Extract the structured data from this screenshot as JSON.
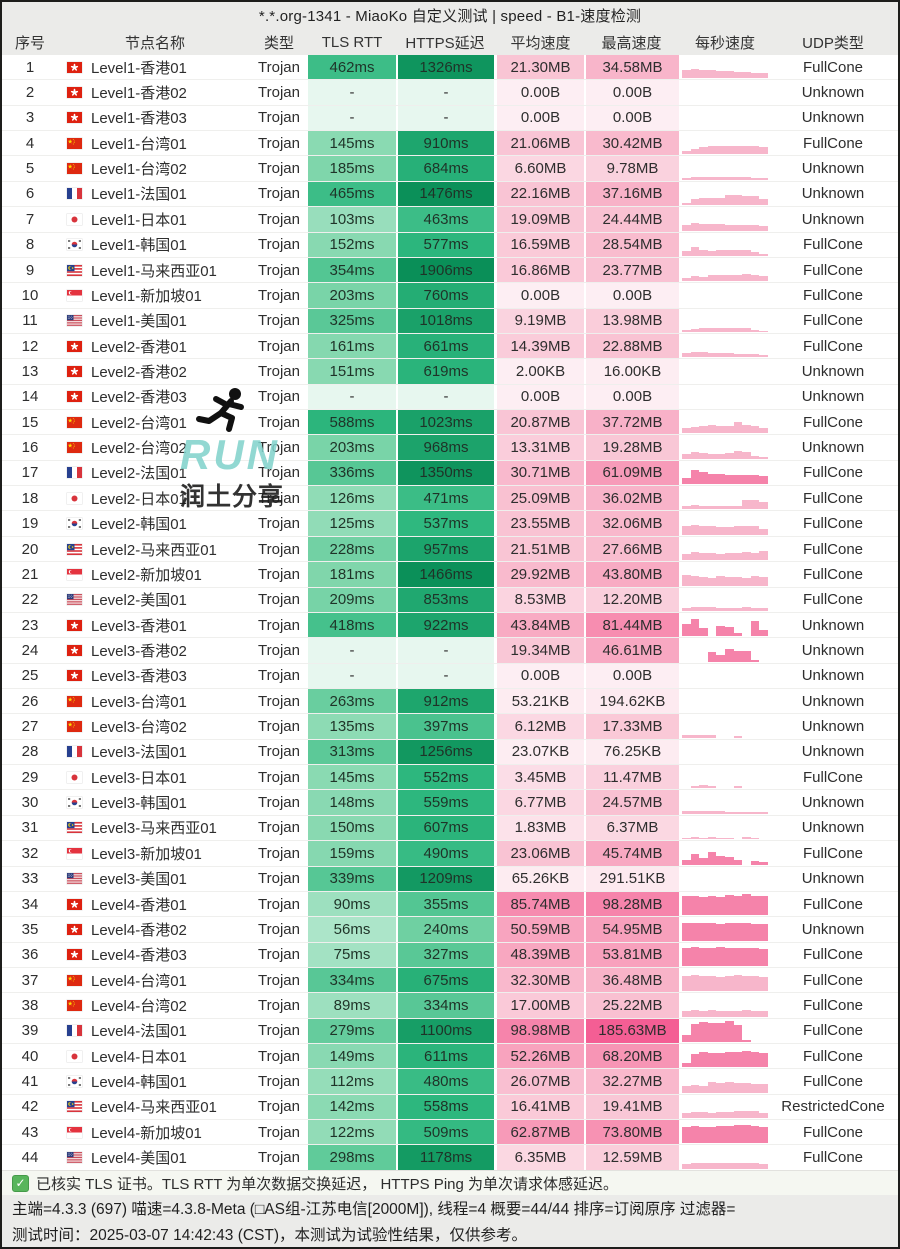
{
  "title": "*.*.org-1341 - MiaoKo 自定义测试 | speed - B1-速度检测",
  "columns": [
    "序号",
    "节点名称",
    "类型",
    "TLS RTT",
    "HTTPS延迟",
    "平均速度",
    "最高速度",
    "每秒速度",
    "UDP类型"
  ],
  "colors": {
    "green_stops": [
      "#e3f7ed",
      "#7fd6ab",
      "#2eb87f",
      "#0a8f58"
    ],
    "pink_stops": [
      "#fdeef3",
      "#f9c3d3",
      "#f795b5",
      "#f45c93"
    ],
    "bar_pink": "#f7b6cb",
    "bar_pink_strong": "#f583aa",
    "watermark_teal": "#7fd2cb",
    "check_green": "#58b55c"
  },
  "rows": [
    {
      "i": "1",
      "flag": "hk",
      "name": "Level1-香港01",
      "type": "Trojan",
      "tls": "462ms",
      "https": "1326ms",
      "avg": "21.30MB",
      "max": "34.58MB",
      "udp": "FullCone",
      "bars": [
        0.4,
        0.45,
        0.42,
        0.38,
        0.36,
        0.34,
        0.32,
        0.3,
        0.27,
        0.24
      ]
    },
    {
      "i": "2",
      "flag": "hk",
      "name": "Level1-香港02",
      "type": "Trojan",
      "tls": "-",
      "https": "-",
      "avg": "0.00B",
      "max": "0.00B",
      "udp": "Unknown",
      "bars": []
    },
    {
      "i": "3",
      "flag": "hk",
      "name": "Level1-香港03",
      "type": "Trojan",
      "tls": "-",
      "https": "-",
      "avg": "0.00B",
      "max": "0.00B",
      "udp": "Unknown",
      "bars": []
    },
    {
      "i": "4",
      "flag": "tw",
      "name": "Level1-台湾01",
      "type": "Trojan",
      "tls": "145ms",
      "https": "910ms",
      "avg": "21.06MB",
      "max": "30.42MB",
      "udp": "FullCone",
      "bars": [
        0.16,
        0.24,
        0.34,
        0.4,
        0.42,
        0.4,
        0.38,
        0.4,
        0.39,
        0.36
      ]
    },
    {
      "i": "5",
      "flag": "tw",
      "name": "Level1-台湾02",
      "type": "Trojan",
      "tls": "185ms",
      "https": "684ms",
      "avg": "6.60MB",
      "max": "9.78MB",
      "udp": "Unknown",
      "bars": [
        0.1,
        0.12,
        0.13,
        0.14,
        0.15,
        0.14,
        0.13,
        0.12,
        0.11,
        0.1
      ]
    },
    {
      "i": "6",
      "flag": "fr",
      "name": "Level1-法国01",
      "type": "Trojan",
      "tls": "465ms",
      "https": "1476ms",
      "avg": "22.16MB",
      "max": "37.16MB",
      "udp": "Unknown",
      "bars": [
        0.12,
        0.3,
        0.36,
        0.34,
        0.32,
        0.5,
        0.48,
        0.45,
        0.42,
        0.3
      ]
    },
    {
      "i": "7",
      "flag": "jp",
      "name": "Level1-日本01",
      "type": "Trojan",
      "tls": "103ms",
      "https": "463ms",
      "avg": "19.09MB",
      "max": "24.44MB",
      "udp": "Unknown",
      "bars": [
        0.28,
        0.36,
        0.33,
        0.31,
        0.29,
        0.28,
        0.27,
        0.26,
        0.24,
        0.22
      ]
    },
    {
      "i": "8",
      "flag": "kr",
      "name": "Level1-韩国01",
      "type": "Trojan",
      "tls": "152ms",
      "https": "577ms",
      "avg": "16.59MB",
      "max": "28.54MB",
      "udp": "FullCone",
      "bars": [
        0.24,
        0.4,
        0.3,
        0.22,
        0.27,
        0.29,
        0.28,
        0.27,
        0.2,
        0.1
      ]
    },
    {
      "i": "9",
      "flag": "my",
      "name": "Level1-马来西亚01",
      "type": "Trojan",
      "tls": "354ms",
      "https": "1906ms",
      "avg": "16.86MB",
      "max": "23.77MB",
      "udp": "FullCone",
      "bars": [
        0.16,
        0.25,
        0.22,
        0.28,
        0.3,
        0.28,
        0.31,
        0.33,
        0.31,
        0.26
      ]
    },
    {
      "i": "10",
      "flag": "sg",
      "name": "Level1-新加坡01",
      "type": "Trojan",
      "tls": "203ms",
      "https": "760ms",
      "avg": "0.00B",
      "max": "0.00B",
      "udp": "FullCone",
      "bars": []
    },
    {
      "i": "11",
      "flag": "us",
      "name": "Level1-美国01",
      "type": "Trojan",
      "tls": "325ms",
      "https": "1018ms",
      "avg": "9.19MB",
      "max": "13.98MB",
      "udp": "FullCone",
      "bars": [
        0.08,
        0.12,
        0.18,
        0.21,
        0.2,
        0.19,
        0.21,
        0.19,
        0.1,
        0.05
      ]
    },
    {
      "i": "12",
      "flag": "hk",
      "name": "Level2-香港01",
      "type": "Trojan",
      "tls": "161ms",
      "https": "661ms",
      "avg": "14.39MB",
      "max": "22.88MB",
      "udp": "FullCone",
      "bars": [
        0.22,
        0.26,
        0.24,
        0.22,
        0.2,
        0.19,
        0.18,
        0.17,
        0.15,
        0.12
      ]
    },
    {
      "i": "13",
      "flag": "hk",
      "name": "Level2-香港02",
      "type": "Trojan",
      "tls": "151ms",
      "https": "619ms",
      "avg": "2.00KB",
      "max": "16.00KB",
      "udp": "Unknown",
      "bars": []
    },
    {
      "i": "14",
      "flag": "hk",
      "name": "Level2-香港03",
      "type": "Trojan",
      "tls": "-",
      "https": "-",
      "avg": "0.00B",
      "max": "0.00B",
      "udp": "Unknown",
      "bars": []
    },
    {
      "i": "15",
      "flag": "tw",
      "name": "Level2-台湾01",
      "type": "Trojan",
      "tls": "588ms",
      "https": "1023ms",
      "avg": "20.87MB",
      "max": "37.72MB",
      "udp": "FullCone",
      "bars": [
        0.24,
        0.3,
        0.35,
        0.38,
        0.36,
        0.34,
        0.55,
        0.42,
        0.36,
        0.28
      ]
    },
    {
      "i": "16",
      "flag": "tw",
      "name": "Level2-台湾02",
      "type": "Trojan",
      "tls": "203ms",
      "https": "968ms",
      "avg": "13.31MB",
      "max": "19.28MB",
      "udp": "Unknown",
      "bars": [
        0.22,
        0.3,
        0.27,
        0.25,
        0.23,
        0.27,
        0.38,
        0.31,
        0.15,
        0.08
      ]
    },
    {
      "i": "17",
      "flag": "fr",
      "name": "Level2-法国01",
      "type": "Trojan",
      "tls": "336ms",
      "https": "1350ms",
      "avg": "30.71MB",
      "max": "61.09MB",
      "udp": "FullCone",
      "bars": [
        0.3,
        0.65,
        0.57,
        0.5,
        0.46,
        0.44,
        0.42,
        0.44,
        0.42,
        0.4
      ]
    },
    {
      "i": "18",
      "flag": "jp",
      "name": "Level2-日本01",
      "type": "Trojan",
      "tls": "126ms",
      "https": "471ms",
      "avg": "25.09MB",
      "max": "36.02MB",
      "udp": "FullCone",
      "bars": [
        0.17,
        0.19,
        0.18,
        0.17,
        0.16,
        0.17,
        0.18,
        0.45,
        0.43,
        0.38
      ]
    },
    {
      "i": "19",
      "flag": "kr",
      "name": "Level2-韩国01",
      "type": "Trojan",
      "tls": "125ms",
      "https": "537ms",
      "avg": "23.55MB",
      "max": "32.06MB",
      "udp": "FullCone",
      "bars": [
        0.42,
        0.46,
        0.44,
        0.42,
        0.38,
        0.35,
        0.4,
        0.42,
        0.4,
        0.3
      ]
    },
    {
      "i": "20",
      "flag": "my",
      "name": "Level2-马来西亚01",
      "type": "Trojan",
      "tls": "228ms",
      "https": "957ms",
      "avg": "21.51MB",
      "max": "27.66MB",
      "udp": "FullCone",
      "bars": [
        0.3,
        0.37,
        0.35,
        0.33,
        0.31,
        0.33,
        0.35,
        0.37,
        0.35,
        0.46
      ]
    },
    {
      "i": "21",
      "flag": "sg",
      "name": "Level2-新加坡01",
      "type": "Trojan",
      "tls": "181ms",
      "https": "1466ms",
      "avg": "29.92MB",
      "max": "43.80MB",
      "udp": "FullCone",
      "bars": [
        0.52,
        0.46,
        0.42,
        0.38,
        0.44,
        0.4,
        0.42,
        0.38,
        0.44,
        0.42
      ]
    },
    {
      "i": "22",
      "flag": "us",
      "name": "Level2-美国01",
      "type": "Trojan",
      "tls": "209ms",
      "https": "853ms",
      "avg": "8.53MB",
      "max": "12.20MB",
      "udp": "FullCone",
      "bars": [
        0.15,
        0.19,
        0.18,
        0.17,
        0.16,
        0.15,
        0.16,
        0.17,
        0.16,
        0.15
      ]
    },
    {
      "i": "23",
      "flag": "hk",
      "name": "Level3-香港01",
      "type": "Trojan",
      "tls": "418ms",
      "https": "922ms",
      "avg": "43.84MB",
      "max": "81.44MB",
      "udp": "Unknown",
      "bars": [
        0.58,
        0.8,
        0.38,
        0,
        0.48,
        0.42,
        0.15,
        0,
        0.75,
        0.32
      ]
    },
    {
      "i": "24",
      "flag": "hk",
      "name": "Level3-香港02",
      "type": "Trojan",
      "tls": "-",
      "https": "-",
      "avg": "19.34MB",
      "max": "46.61MB",
      "udp": "Unknown",
      "bars": [
        0,
        0,
        0,
        0.48,
        0.32,
        0.58,
        0.52,
        0.5,
        0.08,
        0
      ]
    },
    {
      "i": "25",
      "flag": "hk",
      "name": "Level3-香港03",
      "type": "Trojan",
      "tls": "-",
      "https": "-",
      "avg": "0.00B",
      "max": "0.00B",
      "udp": "Unknown",
      "bars": []
    },
    {
      "i": "26",
      "flag": "tw",
      "name": "Level3-台湾01",
      "type": "Trojan",
      "tls": "263ms",
      "https": "912ms",
      "avg": "53.21KB",
      "max": "194.62KB",
      "udp": "Unknown",
      "bars": []
    },
    {
      "i": "27",
      "flag": "tw",
      "name": "Level3-台湾02",
      "type": "Trojan",
      "tls": "135ms",
      "https": "397ms",
      "avg": "6.12MB",
      "max": "17.33MB",
      "udp": "Unknown",
      "bars": [
        0.11,
        0.13,
        0.13,
        0.11,
        0,
        0,
        0.09,
        0,
        0,
        0
      ]
    },
    {
      "i": "28",
      "flag": "fr",
      "name": "Level3-法国01",
      "type": "Trojan",
      "tls": "313ms",
      "https": "1256ms",
      "avg": "23.07KB",
      "max": "76.25KB",
      "udp": "Unknown",
      "bars": []
    },
    {
      "i": "29",
      "flag": "jp",
      "name": "Level3-日本01",
      "type": "Trojan",
      "tls": "145ms",
      "https": "552ms",
      "avg": "3.45MB",
      "max": "11.47MB",
      "udp": "FullCone",
      "bars": [
        0,
        0.13,
        0.15,
        0.13,
        0,
        0,
        0.11,
        0,
        0,
        0
      ]
    },
    {
      "i": "30",
      "flag": "kr",
      "name": "Level3-韩国01",
      "type": "Trojan",
      "tls": "148ms",
      "https": "559ms",
      "avg": "6.77MB",
      "max": "24.57MB",
      "udp": "Unknown",
      "bars": [
        0.11,
        0.15,
        0.13,
        0.12,
        0.11,
        0.1,
        0.1,
        0.09,
        0.08,
        0.07
      ]
    },
    {
      "i": "31",
      "flag": "my",
      "name": "Level3-马来西亚01",
      "type": "Trojan",
      "tls": "150ms",
      "https": "607ms",
      "avg": "1.83MB",
      "max": "6.37MB",
      "udp": "Unknown",
      "bars": [
        0.06,
        0.08,
        0.07,
        0.09,
        0.07,
        0.05,
        0,
        0.08,
        0.05,
        0
      ]
    },
    {
      "i": "32",
      "flag": "sg",
      "name": "Level3-新加坡01",
      "type": "Trojan",
      "tls": "159ms",
      "https": "490ms",
      "avg": "23.06MB",
      "max": "45.74MB",
      "udp": "FullCone",
      "bars": [
        0.22,
        0.48,
        0.32,
        0.58,
        0.42,
        0.36,
        0.22,
        0,
        0.16,
        0.1
      ]
    },
    {
      "i": "33",
      "flag": "us",
      "name": "Level3-美国01",
      "type": "Trojan",
      "tls": "339ms",
      "https": "1209ms",
      "avg": "65.26KB",
      "max": "291.51KB",
      "udp": "Unknown",
      "bars": []
    },
    {
      "i": "34",
      "flag": "hk",
      "name": "Level4-香港01",
      "type": "Trojan",
      "tls": "90ms",
      "https": "355ms",
      "avg": "85.74MB",
      "max": "98.28MB",
      "udp": "FullCone",
      "bars": [
        0.92,
        0.9,
        0.88,
        0.91,
        0.89,
        0.96,
        0.91,
        1,
        0.93,
        0.9
      ]
    },
    {
      "i": "35",
      "flag": "hk",
      "name": "Level4-香港02",
      "type": "Trojan",
      "tls": "56ms",
      "https": "240ms",
      "avg": "50.59MB",
      "max": "54.95MB",
      "udp": "Unknown",
      "bars": [
        0.82,
        0.86,
        0.84,
        0.82,
        0.8,
        0.82,
        0.84,
        0.82,
        0.8,
        0.78
      ]
    },
    {
      "i": "36",
      "flag": "hk",
      "name": "Level4-香港03",
      "type": "Trojan",
      "tls": "75ms",
      "https": "327ms",
      "avg": "48.39MB",
      "max": "53.81MB",
      "udp": "FullCone",
      "bars": [
        0.86,
        0.89,
        0.87,
        0.85,
        0.91,
        0.87,
        0.85,
        0.87,
        0.85,
        0.83
      ]
    },
    {
      "i": "37",
      "flag": "tw",
      "name": "Level4-台湾01",
      "type": "Trojan",
      "tls": "334ms",
      "https": "675ms",
      "avg": "32.30MB",
      "max": "36.48MB",
      "udp": "FullCone",
      "bars": [
        0.72,
        0.76,
        0.74,
        0.72,
        0.7,
        0.72,
        0.8,
        0.74,
        0.72,
        0.7
      ]
    },
    {
      "i": "38",
      "flag": "tw",
      "name": "Level4-台湾02",
      "type": "Trojan",
      "tls": "89ms",
      "https": "334ms",
      "avg": "17.00MB",
      "max": "25.22MB",
      "udp": "FullCone",
      "bars": [
        0.26,
        0.31,
        0.29,
        0.31,
        0.29,
        0.28,
        0.29,
        0.31,
        0.29,
        0.27
      ]
    },
    {
      "i": "39",
      "flag": "fr",
      "name": "Level4-法国01",
      "type": "Trojan",
      "tls": "279ms",
      "https": "1100ms",
      "avg": "98.98MB",
      "max": "185.63MB",
      "udp": "FullCone",
      "bars": [
        0.35,
        0.85,
        0.96,
        0.89,
        0.93,
        1,
        0.82,
        0.12,
        0,
        0
      ]
    },
    {
      "i": "40",
      "flag": "jp",
      "name": "Level4-日本01",
      "type": "Trojan",
      "tls": "149ms",
      "https": "611ms",
      "avg": "52.26MB",
      "max": "68.20MB",
      "udp": "FullCone",
      "bars": [
        0.22,
        0.62,
        0.72,
        0.7,
        0.68,
        0.72,
        0.74,
        0.76,
        0.74,
        0.7
      ]
    },
    {
      "i": "41",
      "flag": "kr",
      "name": "Level4-韩国01",
      "type": "Trojan",
      "tls": "112ms",
      "https": "480ms",
      "avg": "26.07MB",
      "max": "32.27MB",
      "udp": "FullCone",
      "bars": [
        0.32,
        0.36,
        0.34,
        0.52,
        0.48,
        0.5,
        0.48,
        0.46,
        0.44,
        0.42
      ]
    },
    {
      "i": "42",
      "flag": "my",
      "name": "Level4-马来西亚01",
      "type": "Trojan",
      "tls": "142ms",
      "https": "558ms",
      "avg": "16.41MB",
      "max": "19.41MB",
      "udp": "RestrictedCone",
      "bars": [
        0.24,
        0.28,
        0.27,
        0.26,
        0.28,
        0.3,
        0.32,
        0.34,
        0.36,
        0.22
      ]
    },
    {
      "i": "43",
      "flag": "sg",
      "name": "Level4-新加坡01",
      "type": "Trojan",
      "tls": "122ms",
      "https": "509ms",
      "avg": "62.87MB",
      "max": "73.80MB",
      "udp": "FullCone",
      "bars": [
        0.78,
        0.82,
        0.8,
        0.78,
        0.82,
        0.84,
        0.87,
        0.9,
        0.82,
        0.8
      ]
    },
    {
      "i": "44",
      "flag": "us",
      "name": "Level4-美国01",
      "type": "Trojan",
      "tls": "298ms",
      "https": "1178ms",
      "avg": "6.35MB",
      "max": "12.59MB",
      "udp": "FullCone",
      "bars": [
        0.22,
        0.28,
        0.26,
        0.27,
        0.28,
        0.3,
        0.28,
        0.27,
        0.26,
        0.24
      ]
    }
  ],
  "footer": {
    "check_mark": "✓",
    "note": "已核实 TLS 证书。TLS RTT 为单次数据交换延迟， HTTPS Ping 为单次请求体感延迟。",
    "meta": "主端=4.3.3 (697) 喵速=4.3.8-Meta (□AS组-江苏电信[2000M]), 线程=4 概要=44/44 排序=订阅原序 过滤器=",
    "time": "测试时间：2025-03-07 14:42:43 (CST)，本测试为试验性结果，仅供参考。"
  },
  "watermark": {
    "line1": "RUN",
    "line2": "润土分享"
  }
}
